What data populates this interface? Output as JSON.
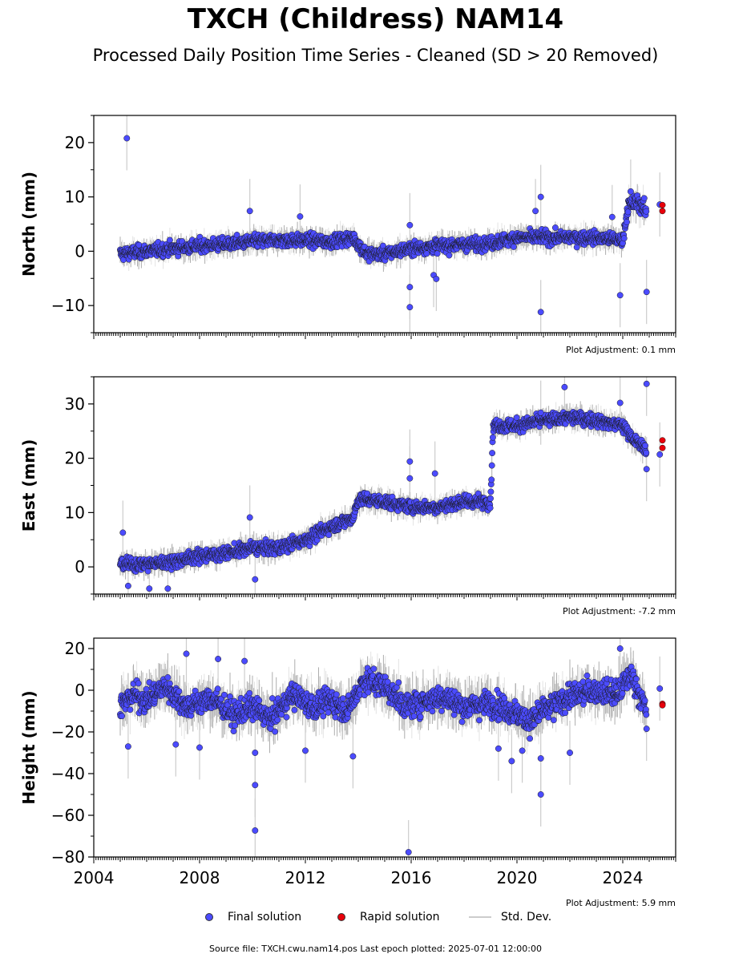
{
  "header": {
    "title": "TXCH (Childress) NAM14",
    "subtitle": "Processed Daily Position Time Series - Cleaned (SD > 20 Removed)"
  },
  "legend": {
    "final_label": "Final solution",
    "rapid_label": "Rapid solution",
    "std_label": "Std. Dev."
  },
  "footer": {
    "source": "Source file: TXCH.cwu.nam14.pos  Last epoch plotted: 2025-07-01 12:00:00"
  },
  "colors": {
    "final": "#4b4bff",
    "rapid": "#e8000b",
    "std": "#cccccc",
    "band": "#6a6a6a"
  },
  "chart_data": [
    {
      "type": "scatter",
      "name": "north",
      "ylabel": "North (mm)",
      "xlim": [
        2004.0,
        2026.0
      ],
      "ylim": [
        -15,
        25
      ],
      "yticks": [
        -10,
        0,
        10,
        20
      ],
      "yticklabels": [
        "−10",
        "0",
        "10",
        "20"
      ],
      "adjustment": "Plot Adjustment: 0.1 mm",
      "trend": [
        [
          2005.0,
          -0.5,
          1.8
        ],
        [
          2006.0,
          0.0,
          1.8
        ],
        [
          2007.0,
          0.5,
          1.8
        ],
        [
          2008.0,
          1.0,
          1.8
        ],
        [
          2009.0,
          1.3,
          1.8
        ],
        [
          2010.0,
          1.8,
          1.8
        ],
        [
          2011.0,
          2.0,
          1.8
        ],
        [
          2012.0,
          2.0,
          1.8
        ],
        [
          2013.0,
          1.8,
          1.8
        ],
        [
          2013.8,
          2.5,
          1.8
        ],
        [
          2014.3,
          -0.5,
          1.8
        ],
        [
          2015.0,
          -0.5,
          1.8
        ],
        [
          2016.0,
          0.5,
          1.8
        ],
        [
          2017.0,
          1.0,
          1.8
        ],
        [
          2018.0,
          1.2,
          1.8
        ],
        [
          2019.0,
          1.5,
          1.8
        ],
        [
          2020.0,
          2.5,
          1.8
        ],
        [
          2021.0,
          2.5,
          1.8
        ],
        [
          2022.0,
          2.5,
          1.8
        ],
        [
          2023.0,
          2.5,
          1.8
        ],
        [
          2024.0,
          2.0,
          1.8
        ],
        [
          2024.2,
          8.5,
          2.2
        ],
        [
          2024.6,
          9.0,
          2.2
        ],
        [
          2024.9,
          7.0,
          2.2
        ]
      ],
      "outliers": [
        [
          2005.25,
          20.8
        ],
        [
          2009.9,
          7.4
        ],
        [
          2011.8,
          6.4
        ],
        [
          2015.95,
          4.8
        ],
        [
          2015.95,
          -6.6
        ],
        [
          2015.95,
          -10.3
        ],
        [
          2016.85,
          -4.4
        ],
        [
          2016.95,
          -5.1
        ],
        [
          2020.7,
          7.4
        ],
        [
          2020.9,
          10.0
        ],
        [
          2020.9,
          -11.2
        ],
        [
          2023.6,
          6.3
        ],
        [
          2023.9,
          -8.1
        ],
        [
          2024.9,
          -7.5
        ],
        [
          2024.3,
          11.0
        ],
        [
          2025.4,
          8.6
        ]
      ],
      "rapid": [
        [
          2025.5,
          8.5
        ],
        [
          2025.5,
          7.4
        ]
      ]
    },
    {
      "type": "scatter",
      "name": "east",
      "ylabel": "East (mm)",
      "xlim": [
        2004.0,
        2026.0
      ],
      "ylim": [
        -5,
        35
      ],
      "yticks": [
        0,
        10,
        20,
        30
      ],
      "yticklabels": [
        "0",
        "10",
        "20",
        "30"
      ],
      "adjustment": "Plot Adjustment: -7.2 mm",
      "trend": [
        [
          2005.0,
          0.5,
          1.8
        ],
        [
          2006.0,
          0.5,
          1.8
        ],
        [
          2007.0,
          1.0,
          1.8
        ],
        [
          2008.0,
          2.0,
          1.8
        ],
        [
          2009.0,
          2.5,
          1.8
        ],
        [
          2010.0,
          3.5,
          1.8
        ],
        [
          2011.0,
          3.5,
          1.8
        ],
        [
          2012.0,
          5.0,
          1.8
        ],
        [
          2013.0,
          7.5,
          1.8
        ],
        [
          2013.8,
          9.0,
          1.8
        ],
        [
          2014.0,
          12.5,
          1.8
        ],
        [
          2015.0,
          12.0,
          1.8
        ],
        [
          2016.0,
          11.0,
          1.8
        ],
        [
          2017.0,
          11.0,
          1.8
        ],
        [
          2018.0,
          12.0,
          1.8
        ],
        [
          2019.0,
          12.0,
          1.8
        ],
        [
          2019.1,
          26.0,
          1.8
        ],
        [
          2020.0,
          26.0,
          1.8
        ],
        [
          2021.0,
          27.0,
          1.8
        ],
        [
          2022.0,
          27.5,
          1.8
        ],
        [
          2023.0,
          27.0,
          1.8
        ],
        [
          2024.0,
          26.0,
          1.8
        ],
        [
          2024.5,
          23.0,
          1.8
        ],
        [
          2024.9,
          21.5,
          1.8
        ]
      ],
      "outliers": [
        [
          2005.1,
          6.3
        ],
        [
          2005.3,
          -3.5
        ],
        [
          2006.1,
          -4.0
        ],
        [
          2006.8,
          -4.0
        ],
        [
          2009.9,
          9.1
        ],
        [
          2010.1,
          -2.3
        ],
        [
          2015.95,
          19.4
        ],
        [
          2015.95,
          16.3
        ],
        [
          2016.9,
          17.2
        ],
        [
          2020.9,
          28.4
        ],
        [
          2021.8,
          33.1
        ],
        [
          2023.9,
          30.2
        ],
        [
          2024.9,
          33.7
        ],
        [
          2024.9,
          18.0
        ],
        [
          2025.4,
          20.7
        ]
      ],
      "rapid": [
        [
          2025.5,
          23.3
        ],
        [
          2025.5,
          21.9
        ]
      ]
    },
    {
      "type": "scatter",
      "name": "height",
      "ylabel": "Height (mm)",
      "xlim": [
        2004.0,
        2026.0
      ],
      "ylim": [
        -80,
        25
      ],
      "yticks": [
        -80,
        -60,
        -40,
        -20,
        0,
        20
      ],
      "yticklabels": [
        "−80",
        "−60",
        "−40",
        "−20",
        "0",
        "20"
      ],
      "adjustment": "Plot Adjustment: 5.9 mm",
      "xticks": [
        2004,
        2008,
        2012,
        2016,
        2020,
        2024
      ],
      "xticklabels": [
        "2004",
        "2008",
        "2012",
        "2016",
        "2020",
        "2024"
      ],
      "trend": [
        [
          2005.0,
          -8.0,
          9.0
        ],
        [
          2005.5,
          -2.0,
          9.0
        ],
        [
          2006.0,
          -5.0,
          9.0
        ],
        [
          2006.7,
          2.0,
          9.0
        ],
        [
          2007.5,
          -8.0,
          9.0
        ],
        [
          2008.5,
          -4.0,
          9.0
        ],
        [
          2009.3,
          -12.0,
          9.0
        ],
        [
          2010.0,
          -8.0,
          9.0
        ],
        [
          2010.7,
          -14.0,
          9.0
        ],
        [
          2011.5,
          -2.0,
          9.0
        ],
        [
          2012.3,
          -8.0,
          9.0
        ],
        [
          2013.0,
          -5.0,
          9.0
        ],
        [
          2013.6,
          -10.0,
          9.0
        ],
        [
          2014.2,
          5.0,
          9.0
        ],
        [
          2015.0,
          2.0,
          9.0
        ],
        [
          2015.8,
          -8.0,
          9.0
        ],
        [
          2016.5,
          -5.0,
          9.0
        ],
        [
          2017.2,
          -3.0,
          9.0
        ],
        [
          2018.0,
          -8.0,
          9.0
        ],
        [
          2019.0,
          -6.0,
          9.0
        ],
        [
          2019.8,
          -10.0,
          9.0
        ],
        [
          2020.5,
          -15.0,
          9.0
        ],
        [
          2021.0,
          -10.0,
          9.0
        ],
        [
          2022.0,
          -3.0,
          9.0
        ],
        [
          2023.0,
          0.0,
          9.0
        ],
        [
          2023.8,
          -2.0,
          9.0
        ],
        [
          2024.3,
          8.0,
          9.0
        ],
        [
          2024.9,
          -10.0,
          9.0
        ]
      ],
      "outliers": [
        [
          2005.3,
          -27.0
        ],
        [
          2007.1,
          -26.0
        ],
        [
          2007.5,
          17.5
        ],
        [
          2008.0,
          -27.5
        ],
        [
          2008.7,
          15.0
        ],
        [
          2009.7,
          14.0
        ],
        [
          2010.1,
          -30.0
        ],
        [
          2010.1,
          -45.5
        ],
        [
          2010.1,
          -67.3
        ],
        [
          2012.0,
          -29.0
        ],
        [
          2013.8,
          -31.7
        ],
        [
          2015.9,
          -77.7
        ],
        [
          2019.3,
          -28.0
        ],
        [
          2019.8,
          -34.0
        ],
        [
          2020.2,
          -29.0
        ],
        [
          2020.9,
          -32.7
        ],
        [
          2020.9,
          -50.0
        ],
        [
          2022.0,
          -30.0
        ],
        [
          2023.9,
          20.0
        ],
        [
          2025.4,
          0.8
        ],
        [
          2024.9,
          -18.5
        ]
      ],
      "rapid": [
        [
          2025.5,
          -6.5
        ],
        [
          2025.5,
          -7.2
        ]
      ]
    }
  ]
}
